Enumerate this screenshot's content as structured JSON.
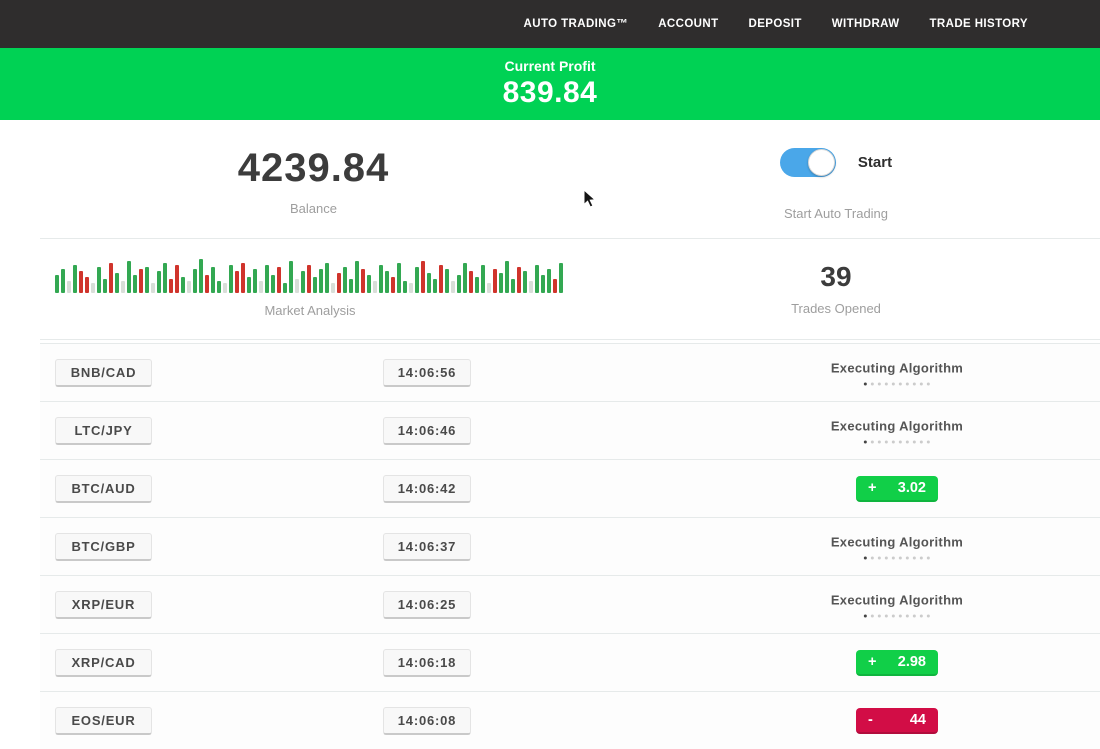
{
  "nav": {
    "items": [
      "AUTO TRADING™",
      "ACCOUNT",
      "DEPOSIT",
      "WITHDRAW",
      "TRADE HISTORY"
    ]
  },
  "banner": {
    "label": "Current Profit",
    "value": "839.84"
  },
  "account": {
    "balance": "4239.84",
    "balance_label": "Balance",
    "toggle_label": "Start",
    "toggle_caption": "Start Auto Trading",
    "toggle_on": true
  },
  "market": {
    "caption": "Market Analysis",
    "trades_opened": "39",
    "trades_caption": "Trades Opened",
    "bars": [
      "g18",
      "g24",
      "p12",
      "g28",
      "r22",
      "r16",
      "p10",
      "g26",
      "g14",
      "r30",
      "g20",
      "p12",
      "g32",
      "g18",
      "r24",
      "g26",
      "p10",
      "g22",
      "g30",
      "r14",
      "r28",
      "g16",
      "p12",
      "g24",
      "g34",
      "r18",
      "g26",
      "g12",
      "p10",
      "g28",
      "r22",
      "r30",
      "g16",
      "g24",
      "p12",
      "g28",
      "g18",
      "r26",
      "g10",
      "g32",
      "p14",
      "g22",
      "r28",
      "g16",
      "g24",
      "g30",
      "p10",
      "r20",
      "g26",
      "g14",
      "g32",
      "r24",
      "g18",
      "p12",
      "g28",
      "g22",
      "r16",
      "g30",
      "g12",
      "p10",
      "g26",
      "r32",
      "g20",
      "g14",
      "r28",
      "g24",
      "p12",
      "g18",
      "g30",
      "r22",
      "g16",
      "g28",
      "p10",
      "r24",
      "g20",
      "g32",
      "g14",
      "r26",
      "g22",
      "p12",
      "g28",
      "g18",
      "g24",
      "r14",
      "g30"
    ]
  },
  "status": {
    "executing_label": "Executing Algorithm",
    "progress_dots": 10,
    "active_dot": 1
  },
  "trades": [
    {
      "pair": "BNB/CAD",
      "time": "14:06:56",
      "status": "executing"
    },
    {
      "pair": "LTC/JPY",
      "time": "14:06:46",
      "status": "executing"
    },
    {
      "pair": "BTC/AUD",
      "time": "14:06:42",
      "status": "profit",
      "sign": "+",
      "amount": "3.02"
    },
    {
      "pair": "BTC/GBP",
      "time": "14:06:37",
      "status": "executing"
    },
    {
      "pair": "XRP/EUR",
      "time": "14:06:25",
      "status": "executing"
    },
    {
      "pair": "XRP/CAD",
      "time": "14:06:18",
      "status": "profit",
      "sign": "+",
      "amount": "2.98"
    },
    {
      "pair": "EOS/EUR",
      "time": "14:06:08",
      "status": "loss",
      "sign": "-",
      "amount": "44"
    }
  ],
  "colors": {
    "nav_bg": "#2f2d2d",
    "banner_green": "#00d254",
    "badge_green": "#11cf48",
    "badge_red": "#d20d46",
    "toggle_blue": "#4aa7e9",
    "bar_green": "#33a852",
    "bar_red": "#d0342c",
    "bar_pale": "#d8ded8"
  }
}
